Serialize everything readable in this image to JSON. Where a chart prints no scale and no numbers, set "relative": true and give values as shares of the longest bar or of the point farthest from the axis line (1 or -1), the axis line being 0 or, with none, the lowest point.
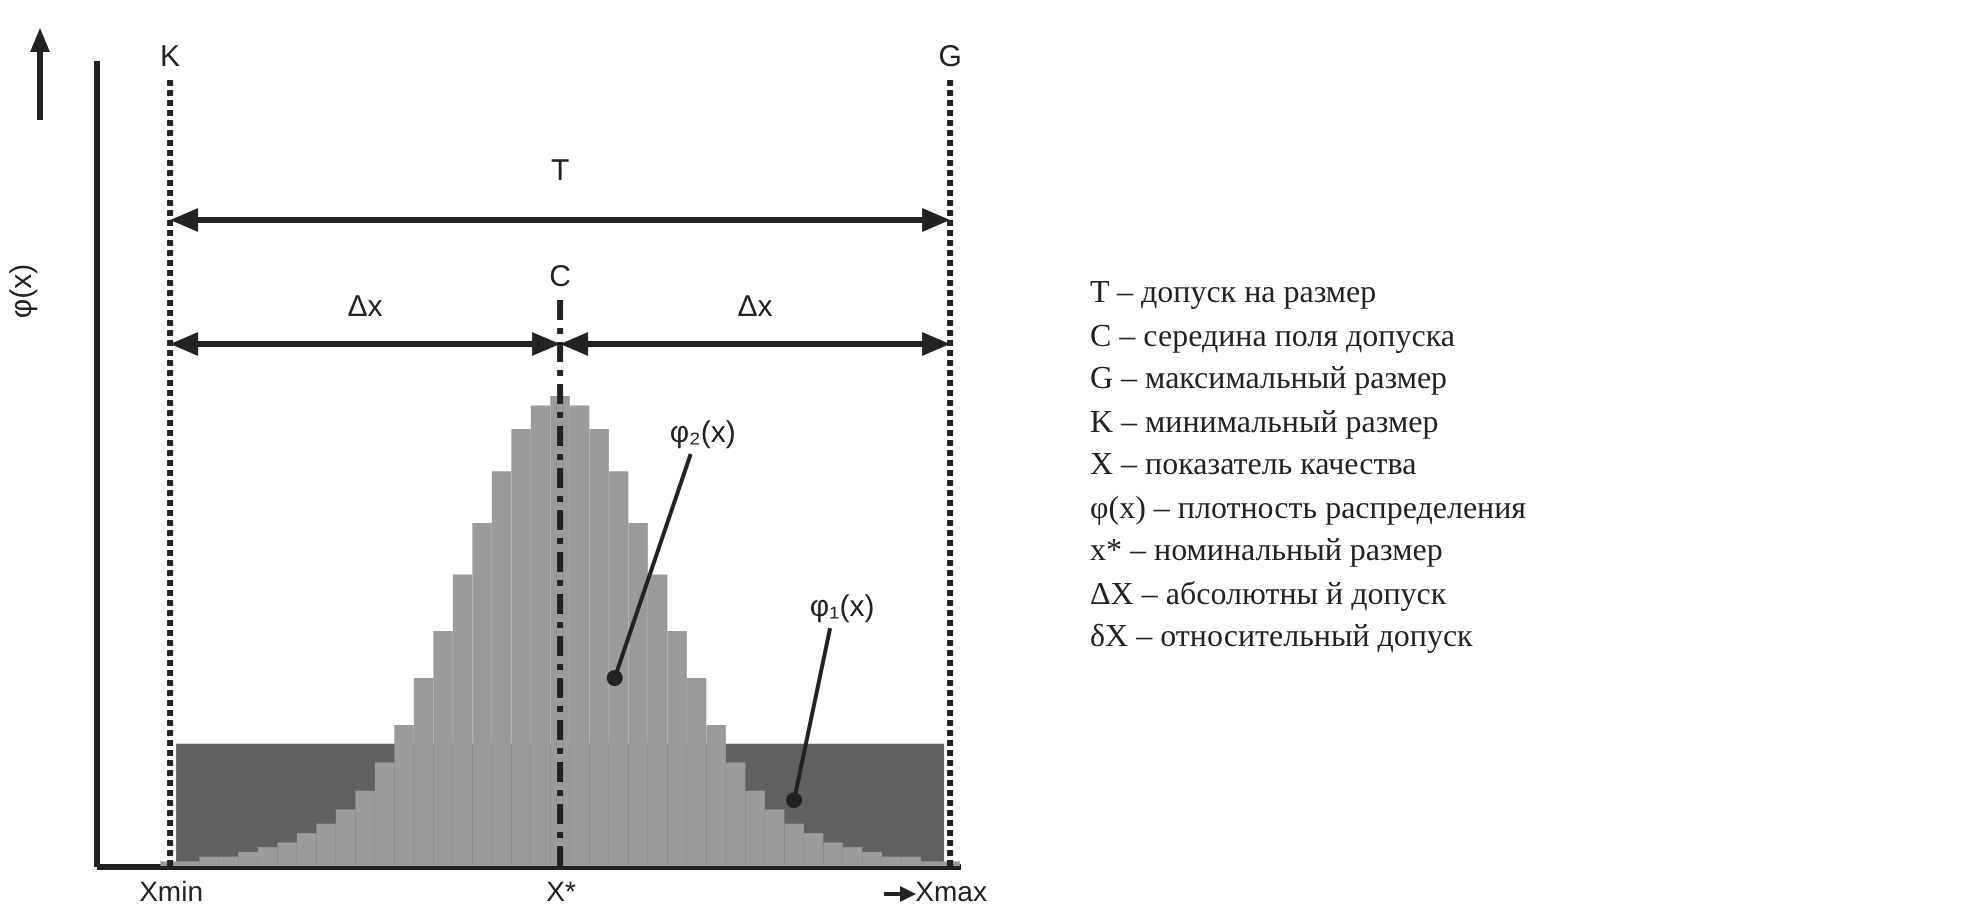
{
  "chart_data": {
    "type": "bar",
    "relative": true,
    "ylabel": "φ(x)",
    "categories": [
      "Xmin",
      null,
      null,
      null,
      null,
      null,
      null,
      null,
      null,
      null,
      null,
      null,
      null,
      null,
      null,
      null,
      null,
      null,
      null,
      null,
      "X*",
      null,
      null,
      null,
      null,
      null,
      null,
      null,
      null,
      null,
      null,
      null,
      null,
      null,
      null,
      null,
      null,
      null,
      null,
      null,
      "Xmax"
    ],
    "series": [
      {
        "color": "#9a9b9d",
        "values": [
          0.01,
          0.01,
          0.02,
          0.02,
          0.03,
          0.04,
          0.05,
          0.07,
          0.09,
          0.12,
          0.16,
          0.22,
          0.3,
          0.4,
          0.5,
          0.62,
          0.73,
          0.84,
          0.93,
          0.98,
          1,
          0.98,
          0.93,
          0.84,
          0.73,
          0.62,
          0.5,
          0.4,
          0.3,
          0.22,
          0.16,
          0.12,
          0.09,
          0.07,
          0.05,
          0.04,
          0.03,
          0.02,
          0.02,
          0.01,
          0.01
        ]
      }
    ],
    "bands": [
      {
        "axis": "y",
        "from": 0,
        "to": 0.26,
        "color": "#5f6062"
      }
    ],
    "ref_lines": [
      {
        "axis": "x",
        "value": "Xmin",
        "label": "K",
        "line_style": "dotted"
      },
      {
        "axis": "x",
        "value": "X*",
        "label": "C",
        "line_style": "dashed"
      },
      {
        "axis": "x",
        "value": "Xmax",
        "label": "G",
        "line_style": "dotted"
      }
    ],
    "annotations": [
      "T",
      "Δx",
      "Δx",
      "φ₂(x)",
      "φ₁(x)",
      "T – допуск на размер",
      "C – середина поля допуска",
      "G – максимальный размер",
      "K – минимальный размер",
      "X – показатель качества",
      "φ(x) – плотность распределения",
      "x* – номинальный размер",
      "ΔX – абсолютны й допуск",
      "δX – относительный допуск"
    ]
  }
}
